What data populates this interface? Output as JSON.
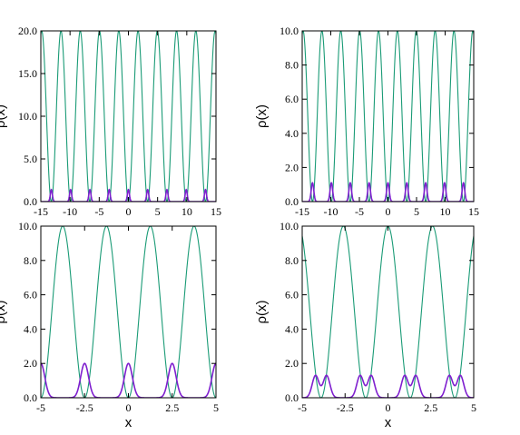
{
  "colors": {
    "potential": "#1a9b76",
    "density": "#7f1fcf",
    "density_fill": "#b41fe0"
  },
  "chart_data": [
    {
      "type": "line",
      "panel": "top-left",
      "xlabel": "",
      "ylabel": "ρ(x)",
      "xlim": [
        -15,
        15
      ],
      "ylim": [
        0,
        20
      ],
      "xticks": [
        "-15",
        "-10",
        "-5",
        "0",
        "5",
        "10",
        "15"
      ],
      "yticks": [
        "0.0",
        "5.0",
        "10.0",
        "15.0",
        "20.0"
      ],
      "series": [
        {
          "role": "potential",
          "shape": "cos2",
          "amplitude": 20.0,
          "period": 3.3,
          "peak_at_x0": false
        },
        {
          "role": "density",
          "shape": "gauss-single",
          "peak_height": 1.4,
          "period": 3.3,
          "width": 0.25,
          "centers_start": 0.0
        }
      ]
    },
    {
      "type": "line",
      "panel": "top-right",
      "xlabel": "",
      "ylabel": "ρ(x)",
      "xlim": [
        -15,
        15
      ],
      "ylim": [
        0,
        10
      ],
      "xticks": [
        "-15",
        "-10",
        "-5",
        "0",
        "5",
        "10",
        "15"
      ],
      "yticks": [
        "0.0",
        "2.0",
        "4.0",
        "6.0",
        "8.0",
        "10.0"
      ],
      "series": [
        {
          "role": "potential",
          "shape": "cos2",
          "amplitude": 10.0,
          "period": 3.3,
          "peak_at_x0": false
        },
        {
          "role": "density",
          "shape": "gauss-single",
          "peak_height": 1.1,
          "period": 3.3,
          "width": 0.32,
          "centers_start": 0.0
        }
      ]
    },
    {
      "type": "line",
      "panel": "bottom-left",
      "xlabel": "x",
      "ylabel": "ρ(x)",
      "xlim": [
        -5,
        5
      ],
      "ylim": [
        0,
        10
      ],
      "xticks": [
        "-5",
        "-2.5",
        "0",
        "2.5",
        "5"
      ],
      "yticks": [
        "0.0",
        "2.0",
        "4.0",
        "6.0",
        "8.0",
        "10.0"
      ],
      "series": [
        {
          "role": "potential",
          "shape": "cos2",
          "amplitude": 10.0,
          "period": 2.5,
          "peak_at_x0": false
        },
        {
          "role": "density",
          "shape": "gauss-single",
          "peak_height": 2.0,
          "period": 2.5,
          "width": 0.32,
          "centers_start": 0.0
        }
      ]
    },
    {
      "type": "line",
      "panel": "bottom-right",
      "xlabel": "x",
      "ylabel": "ρ(x)",
      "xlim": [
        -5,
        5
      ],
      "ylim": [
        0,
        10
      ],
      "xticks": [
        "-5",
        "-2.5",
        "0",
        "2.5",
        "5"
      ],
      "yticks": [
        "0.0",
        "2.0",
        "4.0",
        "6.0",
        "8.0",
        "10.0"
      ],
      "series": [
        {
          "role": "potential",
          "shape": "cos2",
          "amplitude": 10.0,
          "period": 2.6,
          "peak_at_x0": true
        },
        {
          "role": "density",
          "shape": "gauss-double",
          "peak_height": 1.3,
          "period": 2.6,
          "width": 0.28,
          "split": 0.32,
          "centers_start": 0.0
        }
      ]
    }
  ]
}
